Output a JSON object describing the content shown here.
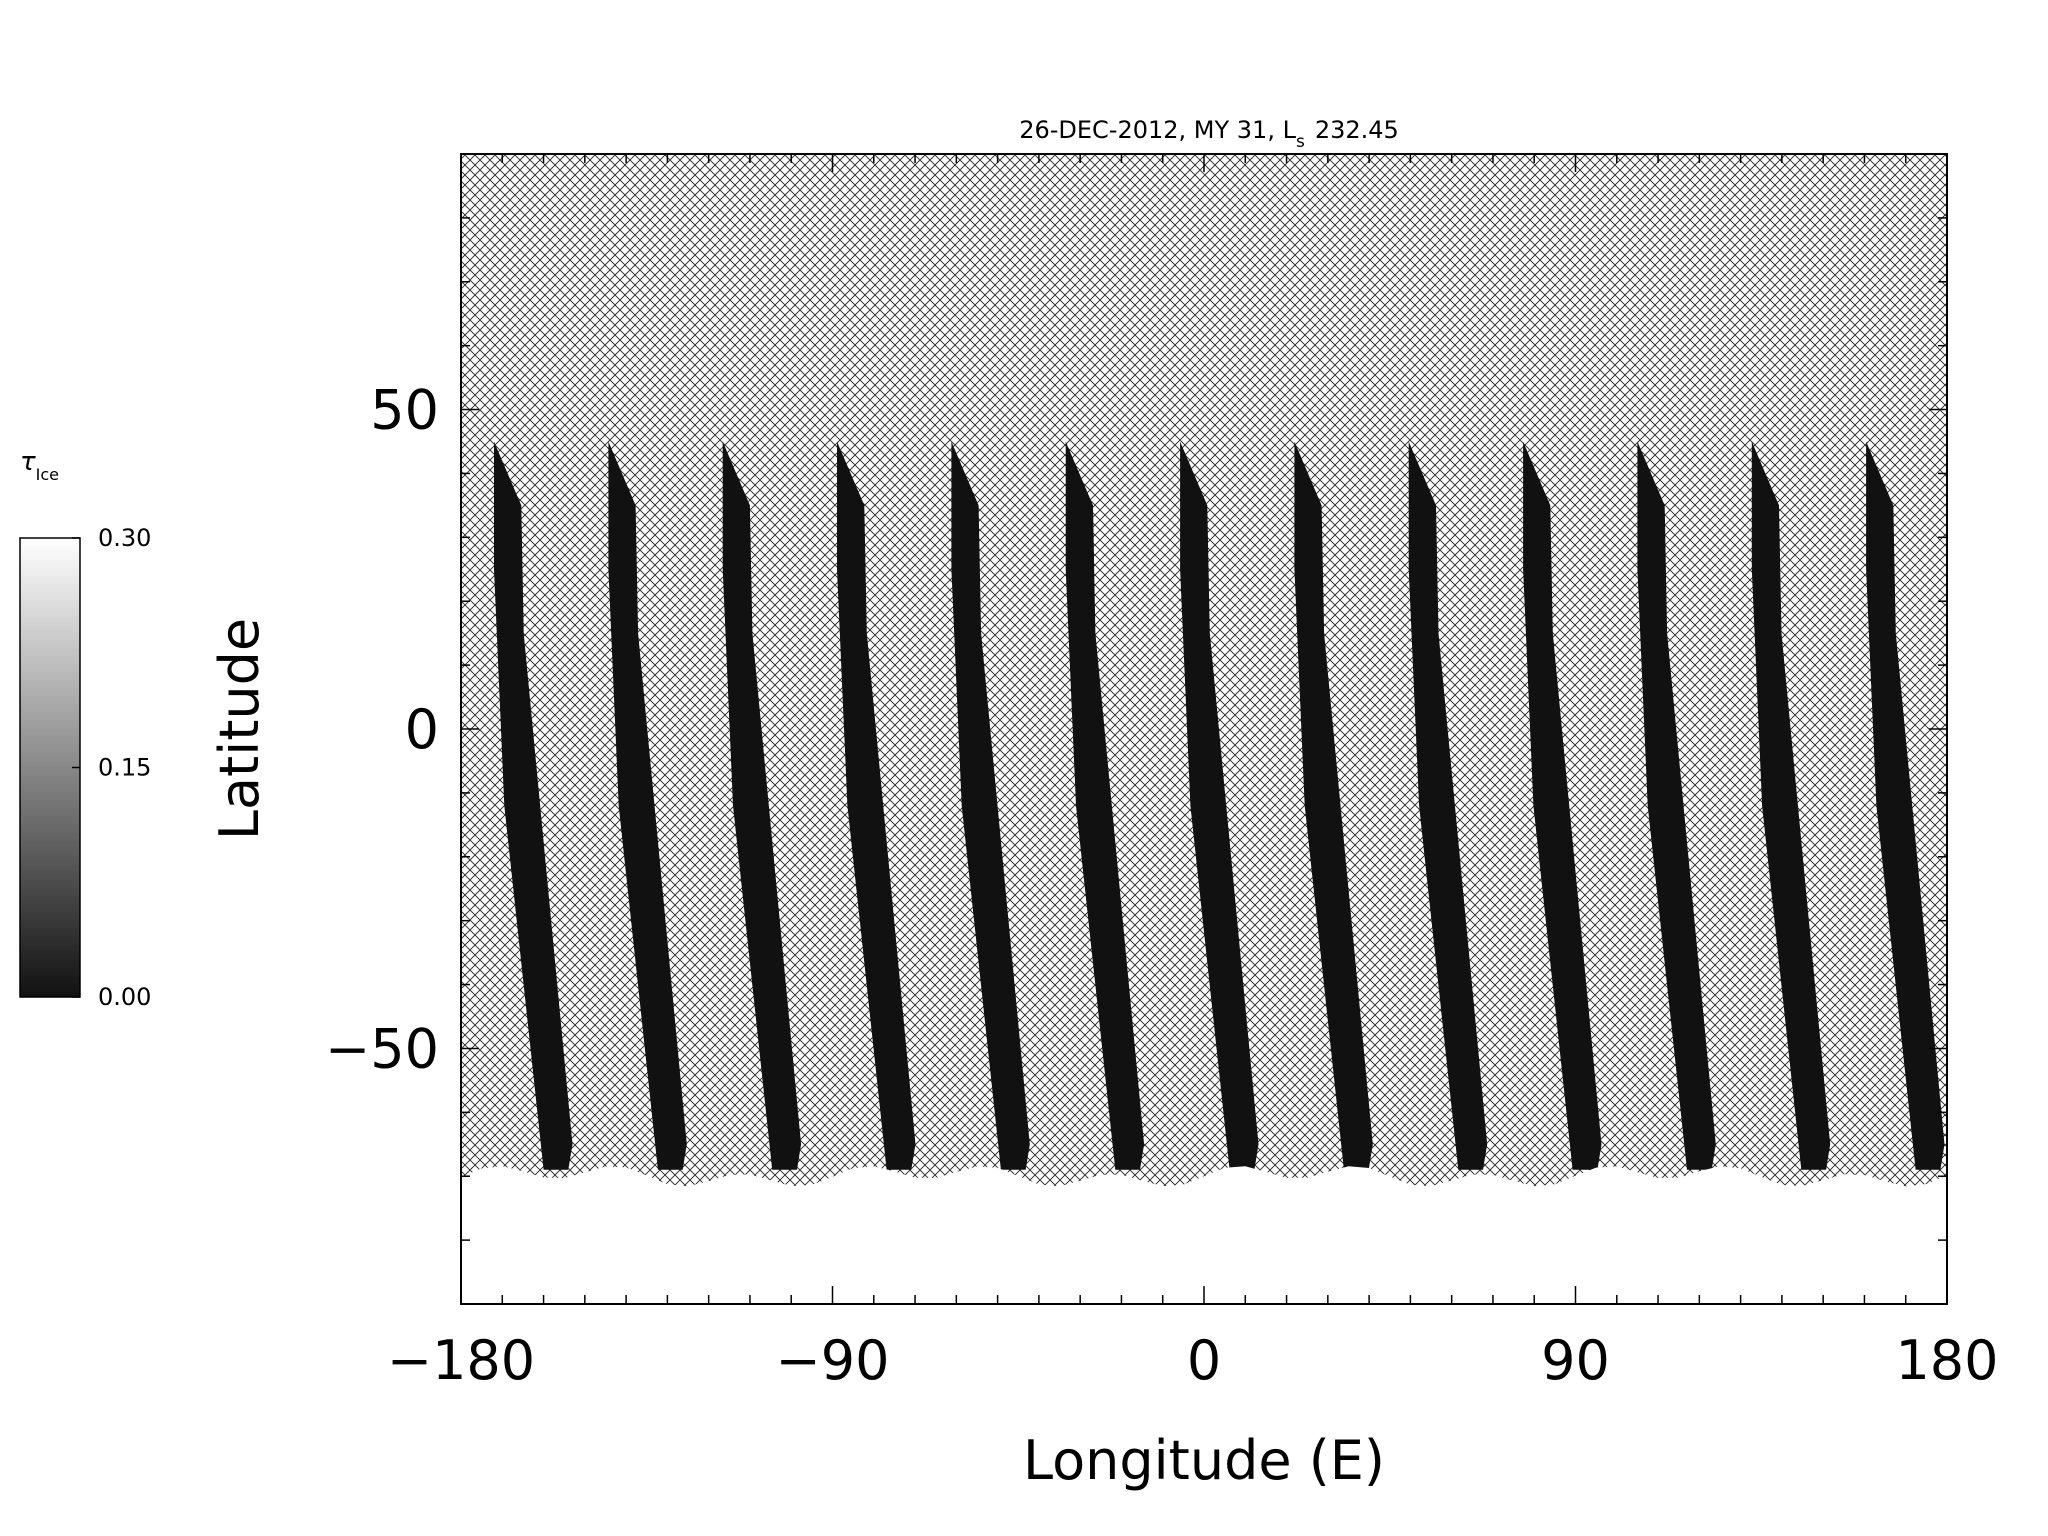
{
  "chart_data": {
    "type": "heatmap",
    "title": "26-DEC-2012, MY 31,  L",
    "title_sub": "s",
    "title_value": "232.45",
    "xlabel": "Longitude (E)",
    "ylabel": "Latitude",
    "xlim": [
      -180,
      180
    ],
    "ylim": [
      -90,
      90
    ],
    "x_ticks": [
      -180,
      -90,
      0,
      90,
      180
    ],
    "x_tick_labels": [
      "−180",
      "−90",
      "0",
      "90",
      "180"
    ],
    "y_ticks": [
      -50,
      0,
      50
    ],
    "y_tick_labels": [
      "−50",
      "0",
      "50"
    ],
    "minor_x_step": 10,
    "minor_y_step": 10,
    "no_data_pattern": "crosshatch",
    "colorbar": {
      "label": "τ",
      "label_sub": "Ice",
      "range": [
        0.0,
        0.3
      ],
      "ticks": [
        0.0,
        0.15,
        0.3
      ],
      "tick_labels": [
        "0.00",
        "0.15",
        "0.30"
      ],
      "colormap": "grayscale",
      "min_color": "#111111",
      "max_color": "#ffffff"
    },
    "swaths": {
      "count": 13,
      "top_lon_start": -172,
      "lon_spacing": 27.7,
      "top_lat": 45,
      "bottom_lat": -69,
      "width_deg_top": 12,
      "width_deg_bottom": 6,
      "drift_deg": 12,
      "value": 0.0
    },
    "south_polar_cloud": {
      "lat_top": -70,
      "lat_bottom": -90,
      "value": 0.3
    },
    "grid": false
  }
}
